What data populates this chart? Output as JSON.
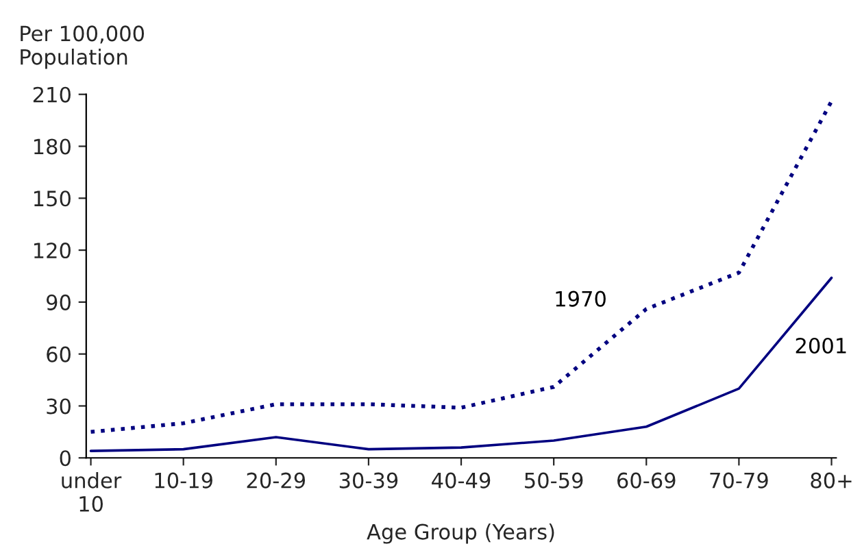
{
  "chart_data": {
    "type": "line",
    "ylabel": "Per 100,000\nPopulation",
    "xlabel": "Age Group (Years)",
    "categories": [
      "under\n10",
      "10-19",
      "20-29",
      "30-39",
      "40-49",
      "50-59",
      "60-69",
      "70-79",
      "80+"
    ],
    "series": [
      {
        "name": "1970",
        "color": "#000080",
        "line_style": "dotted",
        "values": [
          15,
          20,
          31,
          31,
          29,
          41,
          86,
          107,
          206
        ]
      },
      {
        "name": "2001",
        "color": "#000080",
        "line_style": "solid",
        "values": [
          4,
          5,
          12,
          5,
          6,
          10,
          18,
          40,
          104
        ]
      }
    ],
    "ylim": [
      0,
      210
    ],
    "yticks": [
      0,
      30,
      60,
      90,
      120,
      150,
      180,
      210
    ],
    "grid": false,
    "legend": false,
    "marker": "none"
  }
}
